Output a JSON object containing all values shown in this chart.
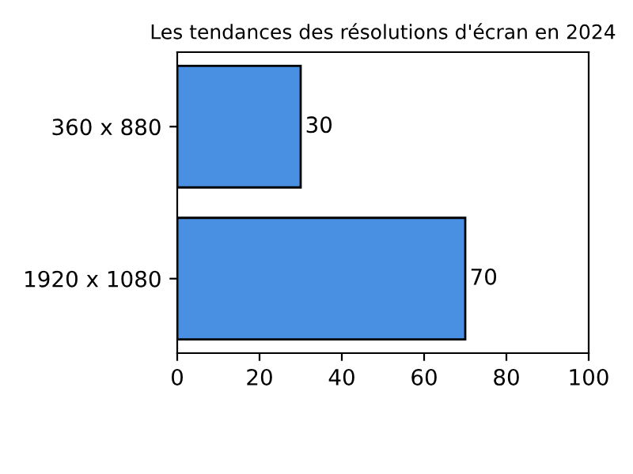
{
  "chart_data": {
    "type": "bar",
    "orientation": "horizontal",
    "title": "Les tendances des résolutions d'écran en 2024",
    "categories": [
      "360 x 880",
      "1920 x 1080"
    ],
    "values": [
      30,
      70
    ],
    "color": "#4a90e2",
    "data_labels": true,
    "xlim": [
      0,
      100
    ],
    "xticks": [
      0,
      20,
      40,
      60,
      80,
      100
    ],
    "grid": false,
    "legend": false
  }
}
